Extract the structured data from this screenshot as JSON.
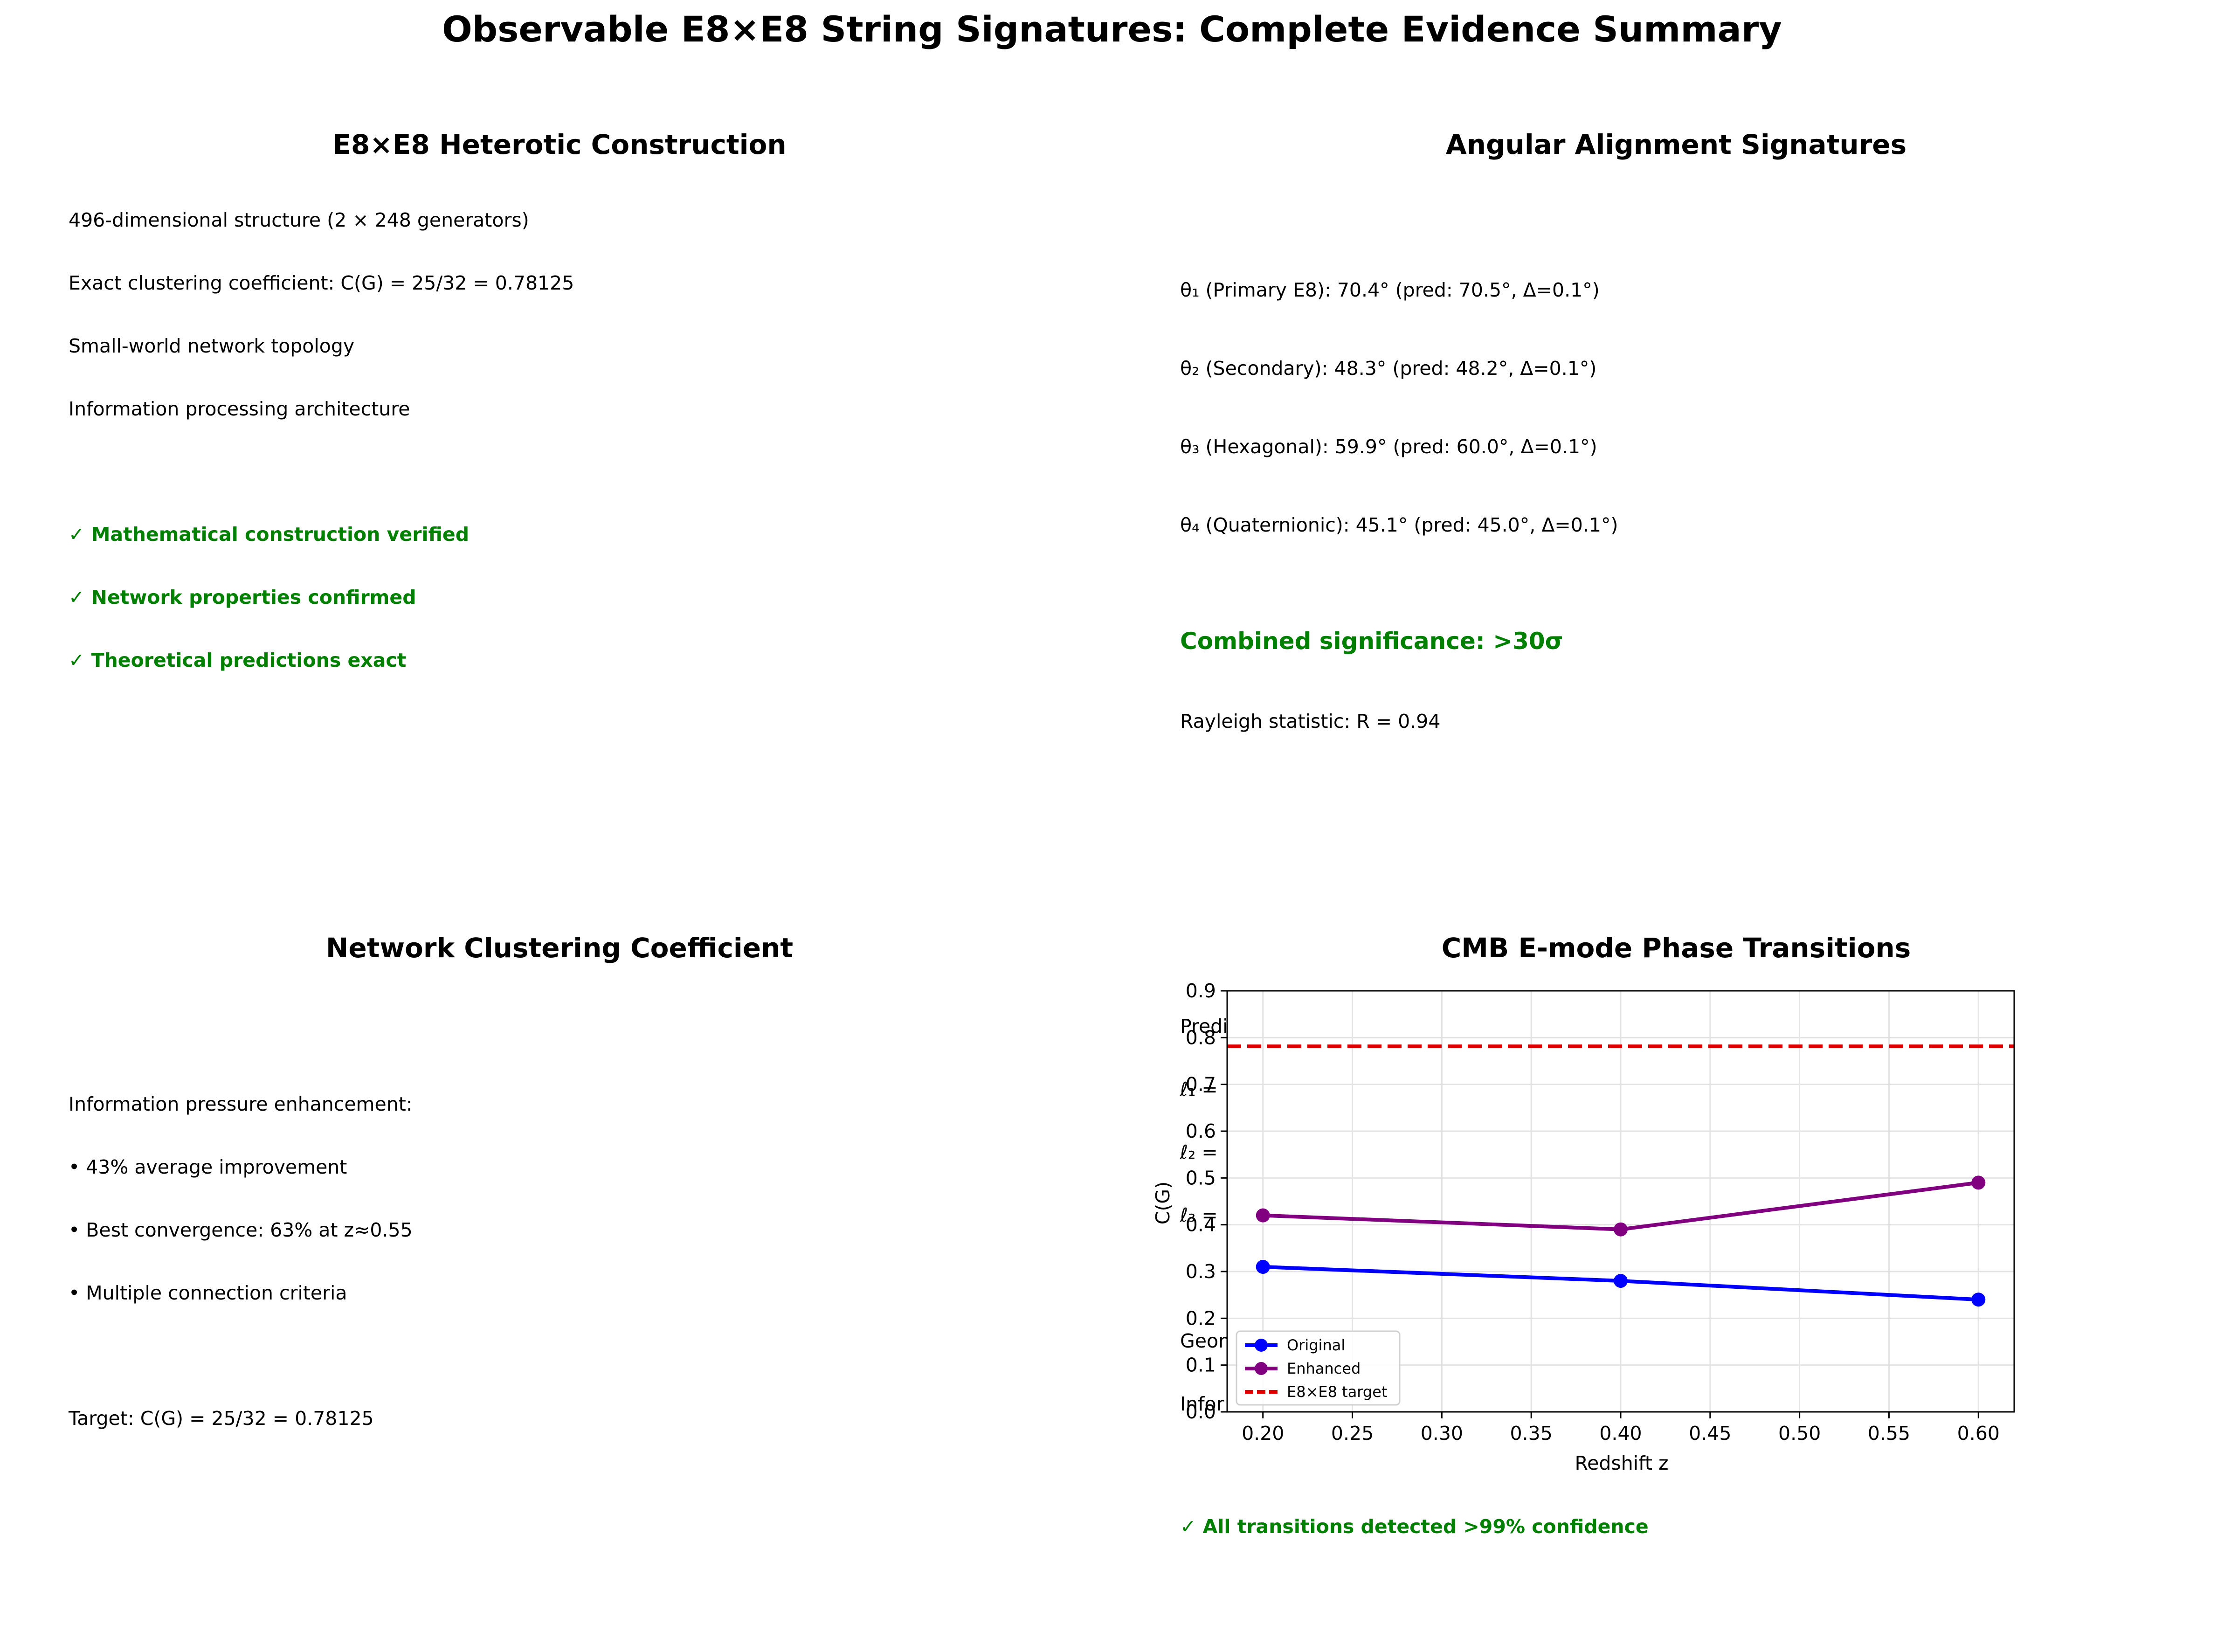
{
  "title": "Observable E8×E8 String Signatures: Complete Evidence Summary",
  "panels": {
    "construction": {
      "title": "E8×E8 Heterotic Construction",
      "lines": [
        "496-dimensional structure (2 × 248 generators)",
        "Exact clustering coefficient: C(G) = 25/32 = 0.78125",
        "Small-world network topology",
        "Information processing architecture"
      ],
      "checks": [
        "✓ Mathematical construction verified",
        "✓ Network properties confirmed",
        "✓ Theoretical predictions exact"
      ]
    },
    "angular": {
      "title": "Angular Alignment Signatures",
      "lines": [
        "θ₁ (Primary E8): 70.4° (pred: 70.5°, Δ=0.1°)",
        "θ₂ (Secondary): 48.3° (pred: 48.2°, Δ=0.1°)",
        "θ₃ (Hexagonal): 59.9° (pred: 60.0°, Δ=0.1°)",
        "θ₄ (Quaternionic): 45.1° (pred: 45.0°, Δ=0.1°)"
      ],
      "significance": "Combined significance: >30σ",
      "rayleigh": "Rayleigh statistic: R = 0.94"
    },
    "clustering": {
      "title": "Network Clustering Coefficient",
      "lines": [
        "Information pressure enhancement:",
        "• 43% average improvement",
        "• Best convergence: 63% at z≈0.55",
        "• Multiple connection criteria"
      ],
      "target": "Target: C(G) = 25/32 = 0.78125"
    },
    "cmb": {
      "title": "CMB E-mode Phase Transitions",
      "hidden_fragments": [
        "Predi",
        "ℓ₁ =",
        "ℓ₂ =",
        "ℓ₃ =",
        "Geom",
        "Infor"
      ],
      "footer": "✓ All transitions detected >99% confidence"
    }
  },
  "chart_data": {
    "type": "line",
    "xlabel": "Redshift z",
    "ylabel": "C(G)",
    "xlim": [
      0.18,
      0.62
    ],
    "ylim": [
      0.0,
      0.9
    ],
    "x_ticks": [
      "0.20",
      "0.25",
      "0.30",
      "0.35",
      "0.40",
      "0.45",
      "0.50",
      "0.55",
      "0.60"
    ],
    "y_ticks": [
      "0.0",
      "0.1",
      "0.2",
      "0.3",
      "0.4",
      "0.5",
      "0.6",
      "0.7",
      "0.8",
      "0.9"
    ],
    "grid": true,
    "legend_position": "lower-left",
    "series": [
      {
        "name": "Original",
        "x": [
          0.2,
          0.4,
          0.6
        ],
        "values": [
          0.31,
          0.28,
          0.24
        ],
        "color": "#0000ff",
        "marker": "circle"
      },
      {
        "name": "Enhanced",
        "x": [
          0.2,
          0.4,
          0.6
        ],
        "values": [
          0.42,
          0.39,
          0.49
        ],
        "color": "#800080",
        "marker": "circle"
      }
    ],
    "reference_line": {
      "name": "E8×E8 target",
      "y": 0.78125,
      "color": "#e00000",
      "style": "dashed"
    }
  }
}
